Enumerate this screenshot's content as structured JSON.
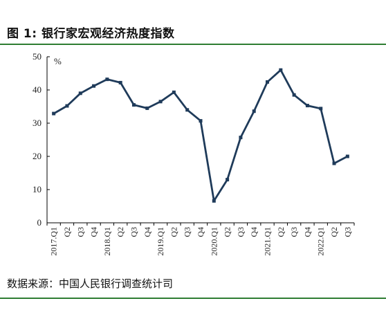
{
  "page": {
    "title": "图 1:  银行家宏观经济热度指数",
    "source": "数据来源：中国人民银行调查统计司"
  },
  "colors": {
    "line": "#1f3b5a",
    "axis": "#000000",
    "rule": "#2e7d32"
  },
  "chart_data": {
    "type": "line",
    "title": "",
    "ylabel": "%",
    "xlabel": "",
    "ylim": [
      0,
      50
    ],
    "yticks": [
      0,
      10,
      20,
      30,
      40,
      50
    ],
    "grid": false,
    "categories": [
      "2017.Q1",
      "Q2",
      "Q3",
      "Q4",
      "2018.Q1",
      "Q2",
      "Q3",
      "Q4",
      "2019.Q1",
      "Q2",
      "Q3",
      "Q4",
      "2020.Q1",
      "Q2",
      "Q3",
      "Q4",
      "2021.Q1",
      "Q2",
      "Q3",
      "Q4",
      "2022.Q1",
      "Q2",
      "Q3"
    ],
    "series": [
      {
        "values": [
          32.9,
          35.2,
          39.0,
          41.2,
          43.2,
          42.2,
          35.5,
          34.5,
          36.5,
          39.3,
          34.0,
          30.7,
          6.6,
          13.0,
          25.7,
          33.6,
          42.4,
          46.0,
          38.5,
          35.3,
          34.4,
          17.9,
          20.0
        ]
      }
    ]
  }
}
